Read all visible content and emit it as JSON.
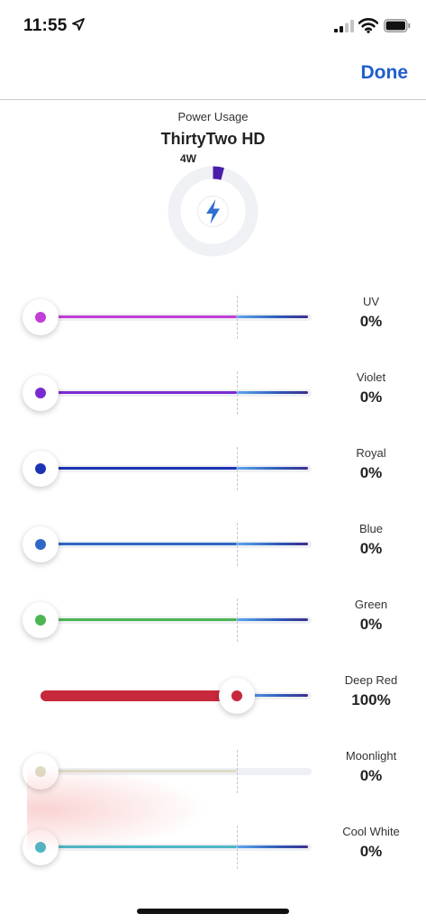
{
  "status": {
    "time": "11:55"
  },
  "nav": {
    "done_label": "Done"
  },
  "power": {
    "label": "Power Usage",
    "device": "ThirtyTwo HD",
    "watts": "4W",
    "ring_fraction": 0.04,
    "ring_color": "#4a1fa8",
    "icon": "lightning-icon"
  },
  "channels": [
    {
      "label": "UV",
      "value": "0%",
      "level": 0,
      "color": "#c13fd6"
    },
    {
      "label": "Violet",
      "value": "0%",
      "level": 0,
      "color": "#7a2bd0"
    },
    {
      "label": "Royal",
      "value": "0%",
      "level": 0,
      "color": "#1c34b3"
    },
    {
      "label": "Blue",
      "value": "0%",
      "level": 0,
      "color": "#2f68c4"
    },
    {
      "label": "Green",
      "value": "0%",
      "level": 0,
      "color": "#4cb552"
    },
    {
      "label": "Deep Red",
      "value": "100%",
      "level": 1,
      "color": "#c8283c"
    },
    {
      "label": "Moonlight",
      "value": "0%",
      "level": 0,
      "color": "#dedcc6"
    },
    {
      "label": "Cool White",
      "value": "0%",
      "level": 0,
      "color": "#4bb6c4"
    }
  ]
}
